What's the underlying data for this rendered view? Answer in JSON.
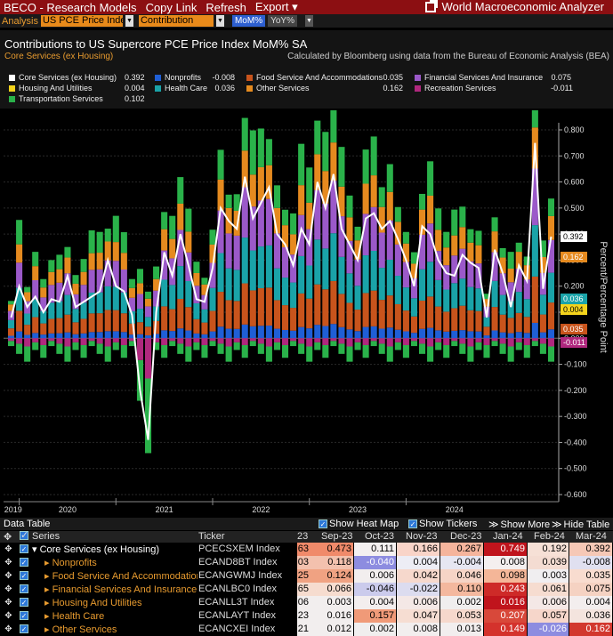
{
  "topbar": {
    "menus": [
      "BECO - Research Models",
      "Copy Link",
      "Refresh",
      "Export ▾"
    ],
    "app_title": "World Macroeconomic Analyzer"
  },
  "toolbar": {
    "label": "Analysis",
    "series_field": "US PCE Price Inde",
    "mode_field": "Contribution",
    "mom": "MoM%",
    "yoy": "YoY%"
  },
  "header": {
    "title": "Contributions to US Supercore PCE Price Index MoM% SA",
    "subtitle": "Core Services (ex Housing)",
    "note": "Calculated by Bloomberg using data from the Bureau of Economic Analysis (BEA)"
  },
  "legend": [
    {
      "name": "Core Services (ex Housing)",
      "value": "0.392",
      "color": "#ffffff"
    },
    {
      "name": "Nonprofits",
      "value": "-0.008",
      "color": "#1f5fd6"
    },
    {
      "name": "Food Service And Accommodations",
      "value": "0.035",
      "color": "#c8541c"
    },
    {
      "name": "Financial Services And Insurance",
      "value": "0.075",
      "color": "#9b59c9"
    },
    {
      "name": "Housing And Utilities",
      "value": "0.004",
      "color": "#f4d31c"
    },
    {
      "name": "Health Care",
      "value": "0.036",
      "color": "#1aa3a8"
    },
    {
      "name": "Other Services",
      "value": "0.162",
      "color": "#e58a1f"
    },
    {
      "name": "Recreation Services",
      "value": "-0.011",
      "color": "#b0287e"
    },
    {
      "name": "Transportation Services",
      "value": "0.102",
      "color": "#2ab24a"
    }
  ],
  "chart_data": {
    "type": "bar",
    "stacked": true,
    "ylabel": "Percent/Percentage Point",
    "ylim": [
      -0.6,
      0.8
    ],
    "y_ticks": [
      "0.800",
      "0.700",
      "0.600",
      "0.500",
      "0.400",
      "0.300",
      "0.200",
      "0.100",
      "0.000",
      "-0.100",
      "-0.200",
      "-0.300",
      "-0.400",
      "-0.500",
      "-0.600"
    ],
    "x_year_labels": [
      "2019",
      "2020",
      "2021",
      "2022",
      "2023",
      "2024"
    ],
    "line_series_name": "Core Services (ex Housing)",
    "line_values": [
      0.08,
      0.2,
      0.12,
      0.16,
      0.1,
      0.15,
      0.14,
      0.24,
      0.12,
      0.14,
      0.16,
      0.18,
      0.3,
      0.2,
      0.18,
      0.09,
      -0.2,
      -0.39,
      0.1,
      0.33,
      0.24,
      0.4,
      0.28,
      0.15,
      0.14,
      0.27,
      0.5,
      0.45,
      0.42,
      0.62,
      0.46,
      0.52,
      0.58,
      0.4,
      0.36,
      0.28,
      0.42,
      0.36,
      0.6,
      0.5,
      0.63,
      0.42,
      0.36,
      0.3,
      0.46,
      0.48,
      0.42,
      0.45,
      0.38,
      0.3,
      0.2,
      0.43,
      0.4,
      0.3,
      0.25,
      0.24,
      0.32,
      0.29,
      0.27,
      0.08,
      0.34,
      0.25,
      0.12,
      0.28,
      0.22,
      0.75,
      0.19,
      0.39
    ],
    "latest_labels": [
      {
        "value": "0.392",
        "color": "#ffffff"
      },
      {
        "value": "0.162",
        "color": "#e58a1f"
      },
      {
        "value": "0.036",
        "color": "#1aa3a8"
      },
      {
        "value": "0.004",
        "color": "#f4d31c"
      },
      {
        "value": "0.035",
        "color": "#c8541c"
      },
      {
        "value": "-0.011",
        "color": "#b0287e"
      }
    ]
  },
  "data_table": {
    "title": "Data Table",
    "controls": {
      "heat_map": "Show Heat Map",
      "tickers": "Show Tickers",
      "more": "Show More",
      "hide": "Hide Table"
    },
    "columns": {
      "series": "Series",
      "ticker": "Ticker",
      "partial": "23",
      "months": [
        "Sep-23",
        "Oct-23",
        "Nov-23",
        "Dec-23",
        "Jan-24",
        "Feb-24",
        "Mar-24"
      ]
    },
    "rows": [
      {
        "name": "Core Services (ex Housing)",
        "ticker": "PCECSXEM Index",
        "partial": "63",
        "values": [
          "0.473",
          "0.111",
          "0.166",
          "0.267",
          "0.749",
          "0.192",
          "0.392"
        ],
        "colors": [
          "#f08a6a",
          "#f4f0f0",
          "#f9d4c8",
          "#f5b49c",
          "#c0141c",
          "#f6e0d6",
          "#f6c8b6"
        ]
      },
      {
        "name": "Nonprofits",
        "ticker": "ECAND8BT Index",
        "partial": "03",
        "values": [
          "0.118",
          "-0.040",
          "0.004",
          "-0.004",
          "0.008",
          "0.039",
          "-0.008"
        ],
        "colors": [
          "#f3c1ae",
          "#8d8ce0",
          "#ededf5",
          "#e6e6f2",
          "#f4efef",
          "#f4dcd2",
          "#e0e0f0"
        ]
      },
      {
        "name": "Food Service And Accommodations",
        "ticker": "ECANGWMJ Index",
        "partial": "25",
        "values": [
          "0.124",
          "0.006",
          "0.042",
          "0.046",
          "0.098",
          "0.003",
          "0.035"
        ],
        "colors": [
          "#f0a282",
          "#f2eeee",
          "#f6d8cc",
          "#f6d4c6",
          "#f4b698",
          "#f0eef0",
          "#f8dccf"
        ]
      },
      {
        "name": "Financial Services And Insurance",
        "ticker": "ECANLBC0 Index",
        "partial": "65",
        "values": [
          "0.066",
          "-0.046",
          "-0.022",
          "0.110",
          "0.243",
          "0.061",
          "0.075"
        ],
        "colors": [
          "#f6dccf",
          "#cbcbec",
          "#dcdcef",
          "#f4b89e",
          "#ce2a28",
          "#f6dcd0",
          "#f5d2c2"
        ]
      },
      {
        "name": "Housing And Utilities",
        "ticker": "ECANLL3T Index",
        "partial": "06",
        "values": [
          "0.003",
          "0.004",
          "0.006",
          "0.002",
          "0.016",
          "0.006",
          "0.004"
        ],
        "colors": [
          "#f2eeee",
          "#f3eeee",
          "#f4e8e6",
          "#f0eeee",
          "#c0141c",
          "#f4e8e6",
          "#f3eeee"
        ]
      },
      {
        "name": "Health Care",
        "ticker": "ECANLAYT Index",
        "partial": "23",
        "values": [
          "0.016",
          "0.157",
          "0.047",
          "0.053",
          "0.207",
          "0.057",
          "0.036"
        ],
        "colors": [
          "#f2eeee",
          "#f09a78",
          "#f6ddd2",
          "#f6d8cc",
          "#d8483a",
          "#f6d6ca",
          "#f4e4de"
        ]
      },
      {
        "name": "Other Services",
        "ticker": "ECANCXEI Index",
        "partial": "21",
        "values": [
          "0.012",
          "0.002",
          "0.008",
          "0.013",
          "0.149",
          "-0.026",
          "0.162"
        ],
        "colors": [
          "#f2eeee",
          "#f0eeee",
          "#f2eeee",
          "#f2eeee",
          "#d4322c",
          "#8d8ce0",
          "#d2382e"
        ]
      }
    ]
  }
}
